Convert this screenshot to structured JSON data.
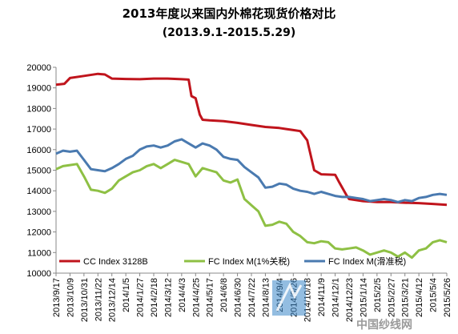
{
  "chart_data": {
    "type": "line",
    "title": "2013年度以来国内外棉花现货价格对比",
    "subtitle": "(2013.9.1-2015.5.29)",
    "xlabel": "",
    "ylabel": "",
    "ylim": [
      10000,
      20000
    ],
    "yticks": [
      "10000",
      "11000",
      "12000",
      "13000",
      "14000",
      "15000",
      "16000",
      "17000",
      "18000",
      "19000",
      "20000"
    ],
    "x_tick_labels": [
      "2013/9/17",
      "2013/10/9",
      "2013/10/31",
      "2013/11/22",
      "2013/12/14",
      "2014/1/5",
      "2014/1/27",
      "2014/2/18",
      "2014/3/12",
      "2014/4/3",
      "2014/4/25",
      "2014/5/17",
      "2014/6/8",
      "2014/6/30",
      "2014/7/22",
      "2014/8/13",
      "2014/9/4",
      "2014/9/26",
      "2014/10/18",
      "2014/11/9",
      "2014/12/1",
      "2014/12/23",
      "2015/1/14",
      "2015/2/5",
      "2015/2/27",
      "2015/3/21",
      "2015/4/12",
      "2015/5/4",
      "2015/5/26"
    ],
    "grid": false,
    "legend_position": "bottom",
    "series": [
      {
        "name": "CC Index 3128B",
        "color": "#c0141c",
        "points": [
          [
            0,
            19150
          ],
          [
            0.6,
            19200
          ],
          [
            1,
            19480
          ],
          [
            2,
            19580
          ],
          [
            3,
            19680
          ],
          [
            3.5,
            19650
          ],
          [
            4,
            19450
          ],
          [
            5,
            19430
          ],
          [
            6,
            19420
          ],
          [
            7,
            19450
          ],
          [
            8,
            19450
          ],
          [
            9,
            19420
          ],
          [
            9.5,
            19400
          ],
          [
            9.7,
            18600
          ],
          [
            10,
            18500
          ],
          [
            10.3,
            17700
          ],
          [
            10.5,
            17450
          ],
          [
            11,
            17420
          ],
          [
            12,
            17380
          ],
          [
            13,
            17300
          ],
          [
            14,
            17200
          ],
          [
            15,
            17100
          ],
          [
            16,
            17050
          ],
          [
            16.5,
            17000
          ],
          [
            17,
            16950
          ],
          [
            17.5,
            16900
          ],
          [
            18,
            16450
          ],
          [
            18.5,
            15000
          ],
          [
            19,
            14800
          ],
          [
            20,
            14780
          ],
          [
            20.3,
            14400
          ],
          [
            20.8,
            13800
          ],
          [
            21,
            13600
          ],
          [
            22,
            13500
          ],
          [
            23,
            13450
          ],
          [
            24,
            13450
          ],
          [
            25,
            13420
          ],
          [
            26,
            13400
          ],
          [
            27,
            13360
          ],
          [
            28,
            13320
          ]
        ]
      },
      {
        "name": "FC Index M(1%关税)",
        "color": "#8ec044",
        "points": [
          [
            0,
            15050
          ],
          [
            0.5,
            15200
          ],
          [
            1,
            15250
          ],
          [
            1.5,
            15300
          ],
          [
            2,
            14700
          ],
          [
            2.5,
            14050
          ],
          [
            3,
            14000
          ],
          [
            3.5,
            13900
          ],
          [
            4,
            14100
          ],
          [
            4.5,
            14500
          ],
          [
            5,
            14700
          ],
          [
            5.5,
            14900
          ],
          [
            6,
            15000
          ],
          [
            6.5,
            15200
          ],
          [
            7,
            15300
          ],
          [
            7.5,
            15100
          ],
          [
            8,
            15300
          ],
          [
            8.5,
            15500
          ],
          [
            9,
            15400
          ],
          [
            9.5,
            15300
          ],
          [
            10,
            14700
          ],
          [
            10.5,
            15100
          ],
          [
            11,
            15000
          ],
          [
            11.5,
            14900
          ],
          [
            12,
            14500
          ],
          [
            12.5,
            14400
          ],
          [
            13,
            14550
          ],
          [
            13.5,
            13600
          ],
          [
            14,
            13300
          ],
          [
            14.5,
            13000
          ],
          [
            15,
            12300
          ],
          [
            15.5,
            12350
          ],
          [
            16,
            12500
          ],
          [
            16.5,
            12400
          ],
          [
            17,
            12000
          ],
          [
            17.5,
            11800
          ],
          [
            18,
            11500
          ],
          [
            18.5,
            11450
          ],
          [
            19,
            11550
          ],
          [
            19.5,
            11500
          ],
          [
            20,
            11200
          ],
          [
            20.5,
            11150
          ],
          [
            21,
            11200
          ],
          [
            21.5,
            11250
          ],
          [
            22,
            11100
          ],
          [
            22.5,
            10900
          ],
          [
            23,
            11000
          ],
          [
            23.5,
            11100
          ],
          [
            24,
            11000
          ],
          [
            24.5,
            10800
          ],
          [
            25,
            11000
          ],
          [
            25.5,
            10750
          ],
          [
            26,
            11100
          ],
          [
            26.5,
            11200
          ],
          [
            27,
            11500
          ],
          [
            27.5,
            11600
          ],
          [
            28,
            11500
          ]
        ]
      },
      {
        "name": "FC Index M(滑准税)",
        "color": "#4a7ab0",
        "points": [
          [
            0,
            15800
          ],
          [
            0.5,
            15950
          ],
          [
            1,
            15900
          ],
          [
            1.5,
            15950
          ],
          [
            2,
            15500
          ],
          [
            2.5,
            15050
          ],
          [
            3,
            15000
          ],
          [
            3.5,
            14950
          ],
          [
            4,
            15100
          ],
          [
            4.5,
            15300
          ],
          [
            5,
            15550
          ],
          [
            5.5,
            15700
          ],
          [
            6,
            16000
          ],
          [
            6.5,
            16150
          ],
          [
            7,
            16200
          ],
          [
            7.5,
            16100
          ],
          [
            8,
            16200
          ],
          [
            8.5,
            16400
          ],
          [
            9,
            16500
          ],
          [
            9.5,
            16300
          ],
          [
            10,
            16100
          ],
          [
            10.5,
            16300
          ],
          [
            11,
            16200
          ],
          [
            11.5,
            16000
          ],
          [
            12,
            15650
          ],
          [
            12.5,
            15550
          ],
          [
            13,
            15500
          ],
          [
            13.5,
            15150
          ],
          [
            14,
            14900
          ],
          [
            14.5,
            14650
          ],
          [
            15,
            14150
          ],
          [
            15.5,
            14200
          ],
          [
            16,
            14350
          ],
          [
            16.5,
            14300
          ],
          [
            17,
            14100
          ],
          [
            17.5,
            14000
          ],
          [
            18,
            13950
          ],
          [
            18.5,
            13850
          ],
          [
            19,
            13950
          ],
          [
            19.5,
            13850
          ],
          [
            20,
            13750
          ],
          [
            20.5,
            13700
          ],
          [
            21,
            13700
          ],
          [
            21.5,
            13650
          ],
          [
            22,
            13600
          ],
          [
            22.5,
            13500
          ],
          [
            23,
            13550
          ],
          [
            23.5,
            13600
          ],
          [
            24,
            13550
          ],
          [
            24.5,
            13450
          ],
          [
            25,
            13550
          ],
          [
            25.5,
            13500
          ],
          [
            26,
            13650
          ],
          [
            26.5,
            13700
          ],
          [
            27,
            13800
          ],
          [
            27.5,
            13850
          ],
          [
            28,
            13800
          ]
        ]
      }
    ]
  },
  "watermark": {
    "text": "中国纱线网"
  }
}
